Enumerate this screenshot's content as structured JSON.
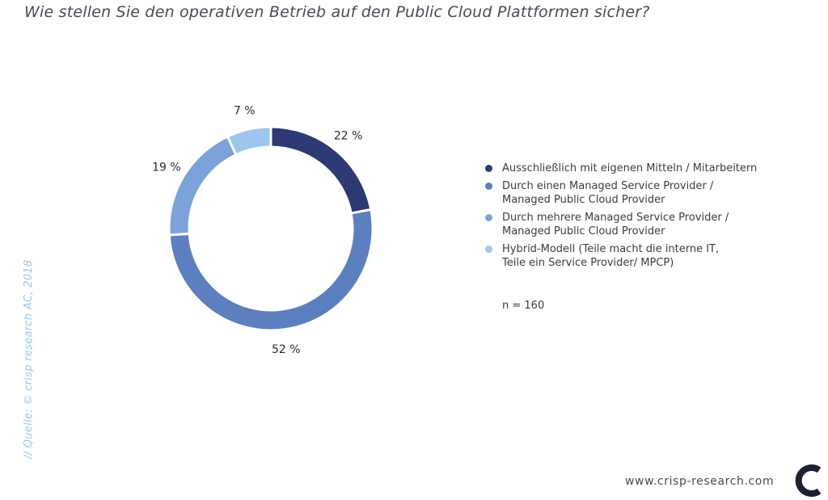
{
  "title": "Wie stellen Sie den operativen Betrieb auf den Public Cloud Plattformen sicher?",
  "source": "// Quelle: © crisp research AC, 2018",
  "sample_size": "n = 160",
  "footer_url": "www.crisp-research.com",
  "logo_icon": "crisp-research-logo",
  "colors": {
    "segment_1": "#2d3a73",
    "segment_2": "#5b7fbf",
    "segment_3": "#7ba3d9",
    "segment_4": "#9cc6ee"
  },
  "legend": [
    {
      "label": "Ausschließlich mit eigenen Mitteln / Mitarbeitern"
    },
    {
      "label": "Durch einen Managed Service Provider /\nManaged Public Cloud Provider"
    },
    {
      "label": "Durch mehrere Managed Service Provider /\nManaged Public Cloud Provider"
    },
    {
      "label": "Hybrid-Modell (Teile macht die interne IT,\nTeile ein Service Provider/ MPCP)"
    }
  ],
  "chart_data": {
    "type": "pie",
    "donut": true,
    "title": "Wie stellen Sie den operativen Betrieb auf den Public Cloud Plattformen sicher?",
    "categories": [
      "Ausschließlich mit eigenen Mitteln / Mitarbeitern",
      "Durch einen Managed Service Provider / Managed Public Cloud Provider",
      "Durch mehrere Managed Service Provider / Managed Public Cloud Provider",
      "Hybrid-Modell (Teile macht die interne IT, Teile ein Service Provider/ MPCP)"
    ],
    "values": [
      22,
      52,
      19,
      7
    ],
    "data_labels": [
      "22 %",
      "52 %",
      "19 %",
      "7 %"
    ],
    "legend_position": "right"
  }
}
